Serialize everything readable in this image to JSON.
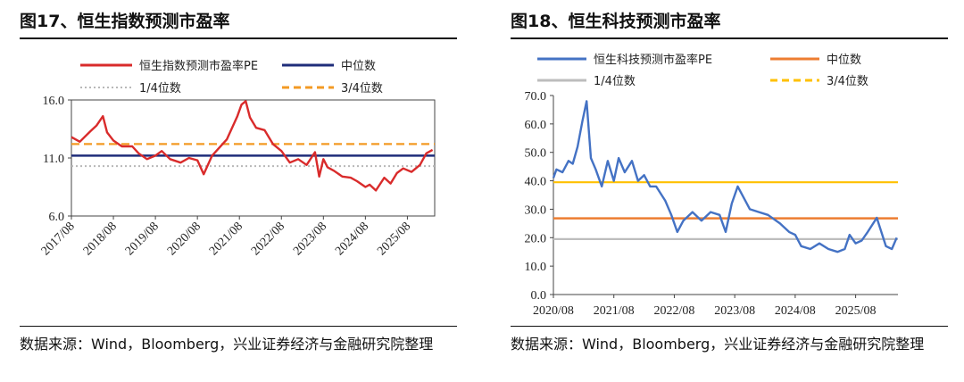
{
  "charts": [
    {
      "title": "图17、恒生指数预测市盈率",
      "source": "数据来源：Wind，Bloomberg，兴业证券经济与金融研究院整理",
      "chart_data": {
        "type": "line",
        "x_ticks": [
          "2017/08",
          "2018/08",
          "2019/08",
          "2020/08",
          "2021/08",
          "2022/08",
          "2023/08",
          "2024/08",
          "2025/08"
        ],
        "y_ticks": [
          "6.0",
          "11.0",
          "16.0"
        ],
        "ylim": [
          6,
          16
        ],
        "xlim": [
          2017.0,
          2025.65
        ],
        "grid": false,
        "legend_position": "top",
        "series": [
          {
            "name": "恒生指数预测市盈率PE",
            "role": "pe",
            "color": "#d92b2b",
            "x": [
              2017.0,
              2017.2,
              2017.45,
              2017.6,
              2017.75,
              2017.85,
              2018.0,
              2018.2,
              2018.45,
              2018.6,
              2018.8,
              2019.0,
              2019.15,
              2019.35,
              2019.6,
              2019.8,
              2020.0,
              2020.15,
              2020.35,
              2020.5,
              2020.7,
              2020.85,
              2020.95,
              2021.05,
              2021.15,
              2021.25,
              2021.4,
              2021.6,
              2021.8,
              2022.0,
              2022.2,
              2022.4,
              2022.6,
              2022.8,
              2022.9,
              2023.0,
              2023.1,
              2023.25,
              2023.45,
              2023.65,
              2023.8,
              2024.0,
              2024.1,
              2024.25,
              2024.45,
              2024.6,
              2024.75,
              2024.9,
              2025.1,
              2025.3,
              2025.45,
              2025.6
            ],
            "y": [
              12.8,
              12.4,
              13.3,
              13.8,
              14.6,
              13.2,
              12.5,
              12.0,
              12.0,
              11.4,
              10.9,
              11.2,
              11.6,
              10.9,
              10.6,
              11.0,
              10.8,
              9.6,
              11.2,
              11.8,
              12.6,
              13.8,
              14.6,
              15.6,
              15.9,
              14.5,
              13.6,
              13.4,
              12.2,
              11.6,
              10.6,
              10.9,
              10.4,
              11.5,
              9.4,
              10.9,
              10.2,
              9.9,
              9.4,
              9.3,
              9.0,
              8.5,
              8.7,
              8.2,
              9.3,
              8.8,
              9.7,
              10.1,
              9.8,
              10.4,
              11.4,
              11.7
            ]
          },
          {
            "name": "中位数",
            "role": "median",
            "color": "#1f2d7a",
            "value": 11.2
          },
          {
            "name": "1/4位数",
            "role": "q1",
            "color": "#b8b8b8",
            "value": 10.3
          },
          {
            "name": "3/4位数",
            "role": "q3",
            "color": "#f39a24",
            "value": 12.2
          }
        ]
      }
    },
    {
      "title": "图18、恒生科技预测市盈率",
      "source": "数据来源：Wind，Bloomberg，兴业证券经济与金融研究院整理",
      "chart_data": {
        "type": "line",
        "x_ticks": [
          "2020/08",
          "2021/08",
          "2022/08",
          "2023/08",
          "2024/08",
          "2025/08"
        ],
        "y_ticks": [
          "0.0",
          "10.0",
          "20.0",
          "30.0",
          "40.0",
          "50.0",
          "60.0",
          "70.0"
        ],
        "ylim": [
          0,
          70
        ],
        "xlim": [
          2020.0,
          2025.7
        ],
        "grid": false,
        "legend_position": "top",
        "series": [
          {
            "name": "恒生科技预测市盈率PE",
            "role": "pe",
            "color": "#4472c4",
            "x": [
              2020.0,
              2020.05,
              2020.15,
              2020.25,
              2020.32,
              2020.4,
              2020.48,
              2020.55,
              2020.62,
              2020.7,
              2020.8,
              2020.9,
              2021.0,
              2021.08,
              2021.18,
              2021.3,
              2021.4,
              2021.5,
              2021.6,
              2021.7,
              2021.85,
              2021.95,
              2022.05,
              2022.15,
              2022.3,
              2022.45,
              2022.6,
              2022.75,
              2022.85,
              2022.95,
              2023.05,
              2023.15,
              2023.25,
              2023.4,
              2023.55,
              2023.75,
              2023.9,
              2024.0,
              2024.1,
              2024.25,
              2024.4,
              2024.55,
              2024.7,
              2024.82,
              2024.9,
              2025.0,
              2025.1,
              2025.2,
              2025.35,
              2025.5,
              2025.6,
              2025.68
            ],
            "y": [
              41,
              44,
              43,
              47,
              46,
              52,
              61,
              68,
              48,
              44,
              38,
              47,
              40,
              48,
              43,
              47,
              40,
              42,
              38,
              38,
              33,
              28,
              22,
              26,
              29,
              26,
              29,
              28,
              22,
              32,
              38,
              34,
              30,
              29,
              28,
              25,
              22,
              21,
              17,
              16,
              18,
              16,
              15,
              16,
              21,
              18,
              19,
              22,
              27,
              17,
              16,
              20
            ]
          },
          {
            "name": "中位数",
            "role": "median",
            "color": "#ed7d31",
            "value": 26.8
          },
          {
            "name": "1/4位数",
            "role": "q1",
            "color": "#bdbdbd",
            "value": 19.5
          },
          {
            "name": "3/4位数",
            "role": "q3",
            "color": "#ffc000",
            "value": 39.5
          }
        ]
      }
    }
  ]
}
